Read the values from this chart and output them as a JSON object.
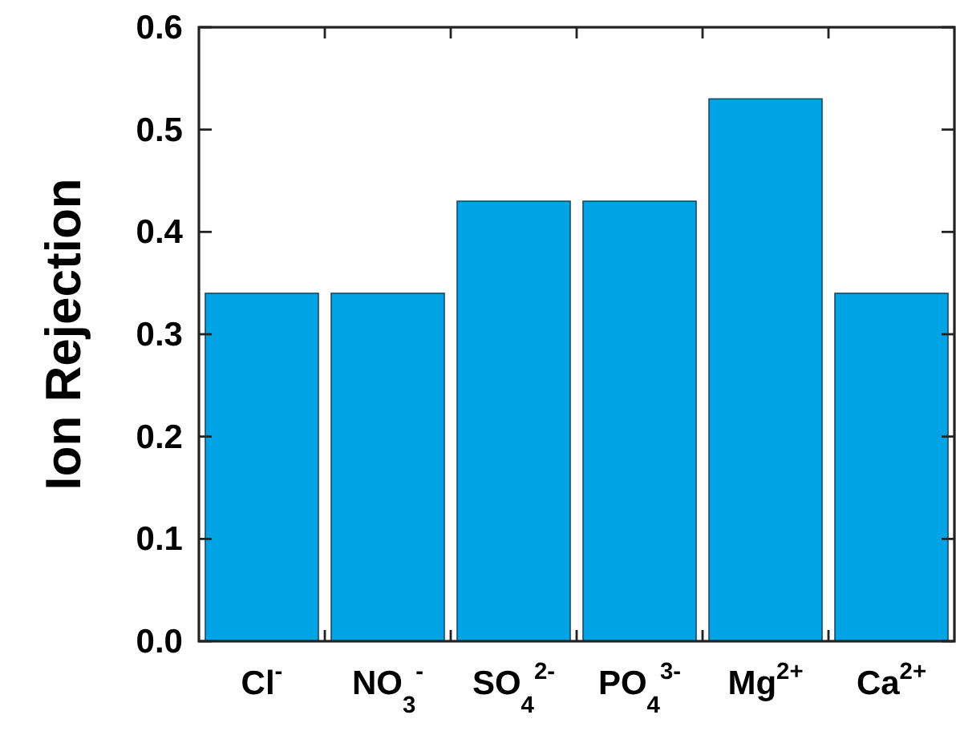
{
  "chart_data": {
    "type": "bar",
    "ylabel": "Ion Rejection",
    "categories": [
      "Cl$^{-}$",
      "NO$_{3}$$^{-}$",
      "SO$_{4}$$^{2-}$",
      "PO$_{4}$$^{3-}$",
      "Mg$^{2+}$",
      "Ca$^{2+}$"
    ],
    "values": [
      0.34,
      0.34,
      0.43,
      0.43,
      0.53,
      0.34
    ],
    "color": "#00a3e3",
    "ylim": [
      0,
      0.6
    ],
    "yticks": [
      {
        "value": 0,
        "label": "0.0"
      },
      {
        "value": 0.1,
        "label": "0.1"
      },
      {
        "value": 0.2,
        "label": "0.2"
      },
      {
        "value": 0.3,
        "label": "0.3"
      },
      {
        "value": 0.4,
        "label": "0.4"
      },
      {
        "value": 0.5,
        "label": "0.5"
      },
      {
        "value": 0.6,
        "label": "0.6"
      }
    ],
    "grid": false
  }
}
